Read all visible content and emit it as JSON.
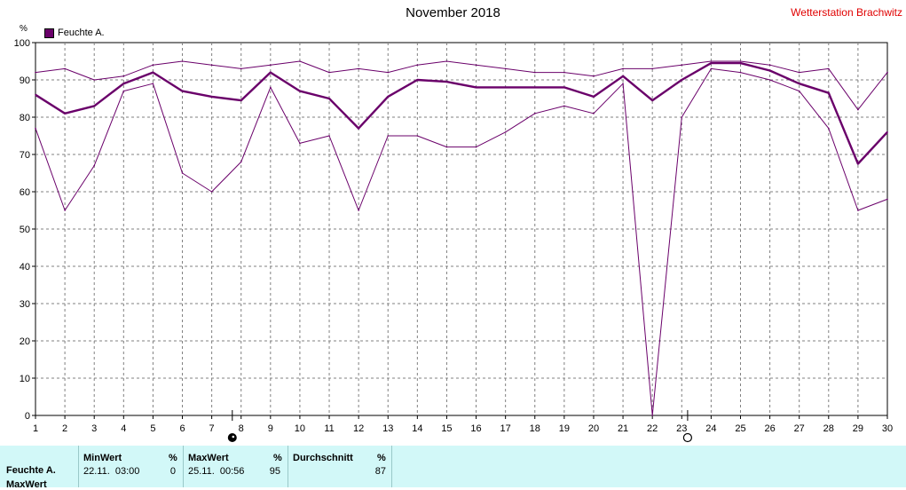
{
  "header": {
    "title": "November 2018",
    "station": "Wetterstation Brachwitz",
    "unit": "%"
  },
  "legend": {
    "label": "Feuchte A.",
    "color": "#6a006a"
  },
  "chart_data": {
    "type": "line",
    "x": [
      1,
      2,
      3,
      4,
      5,
      6,
      7,
      8,
      9,
      10,
      11,
      12,
      13,
      14,
      15,
      16,
      17,
      18,
      19,
      20,
      21,
      22,
      23,
      24,
      25,
      26,
      27,
      28,
      29,
      30
    ],
    "xticks": [
      "1",
      "2",
      "3",
      "4",
      "5",
      "6",
      "7",
      "8",
      "9",
      "10",
      "11",
      "12",
      "13",
      "14",
      "15",
      "16",
      "17",
      "18",
      "19",
      "20",
      "21",
      "22",
      "23",
      "24",
      "25",
      "26",
      "27",
      "28",
      "29",
      "30"
    ],
    "ylim": [
      0,
      100
    ],
    "yticks": [
      "0",
      "10",
      "20",
      "30",
      "40",
      "50",
      "60",
      "70",
      "80",
      "90",
      "100"
    ],
    "grid": true,
    "series": [
      {
        "role": "max",
        "color": "#6a006a",
        "points": [
          [
            1,
            92
          ],
          [
            2,
            93
          ],
          [
            3,
            90
          ],
          [
            4,
            91
          ],
          [
            5,
            94
          ],
          [
            6,
            95
          ],
          [
            7,
            94
          ],
          [
            8,
            93
          ],
          [
            9,
            94
          ],
          [
            10,
            95
          ],
          [
            11,
            92
          ],
          [
            12,
            93
          ],
          [
            13,
            92
          ],
          [
            14,
            94
          ],
          [
            15,
            95
          ],
          [
            16,
            94
          ],
          [
            17,
            93
          ],
          [
            18,
            92
          ],
          [
            19,
            92
          ],
          [
            20,
            91
          ],
          [
            21,
            93
          ],
          [
            22,
            93
          ],
          [
            23,
            94
          ],
          [
            24,
            95
          ],
          [
            25,
            95
          ],
          [
            26,
            94
          ],
          [
            27,
            92
          ],
          [
            28,
            93
          ],
          [
            29,
            82
          ],
          [
            30,
            92
          ]
        ]
      },
      {
        "role": "avg",
        "color": "#6a006a",
        "points": [
          [
            1,
            86
          ],
          [
            2,
            81
          ],
          [
            3,
            83
          ],
          [
            4,
            89
          ],
          [
            5,
            92
          ],
          [
            6,
            87
          ],
          [
            7,
            85.5
          ],
          [
            8,
            84.5
          ],
          [
            9,
            92
          ],
          [
            10,
            87
          ],
          [
            11,
            85
          ],
          [
            12,
            77
          ],
          [
            13,
            85.5
          ],
          [
            14,
            90
          ],
          [
            15,
            89.5
          ],
          [
            16,
            88
          ],
          [
            17,
            88
          ],
          [
            18,
            88
          ],
          [
            19,
            88
          ],
          [
            20,
            85.5
          ],
          [
            21,
            91
          ],
          [
            22,
            84.5
          ],
          [
            23,
            90
          ],
          [
            24,
            94.5
          ],
          [
            25,
            94.5
          ],
          [
            26,
            92.5
          ],
          [
            27,
            89
          ],
          [
            28,
            86.5
          ],
          [
            29,
            67.5
          ],
          [
            30,
            76
          ]
        ]
      },
      {
        "role": "min",
        "color": "#6a006a",
        "points": [
          [
            1,
            77
          ],
          [
            2,
            55
          ],
          [
            3,
            67
          ],
          [
            4,
            87
          ],
          [
            5,
            89
          ],
          [
            6,
            65
          ],
          [
            7,
            60
          ],
          [
            8,
            68
          ],
          [
            9,
            88
          ],
          [
            10,
            73
          ],
          [
            11,
            75
          ],
          [
            12,
            55
          ],
          [
            13,
            75
          ],
          [
            14,
            75
          ],
          [
            15,
            72
          ],
          [
            16,
            72
          ],
          [
            17,
            76
          ],
          [
            18,
            81
          ],
          [
            19,
            83
          ],
          [
            20,
            81
          ],
          [
            21,
            89
          ],
          [
            22,
            0
          ],
          [
            23,
            80
          ],
          [
            24,
            93
          ],
          [
            25,
            92
          ],
          [
            26,
            90
          ],
          [
            27,
            87
          ],
          [
            28,
            77
          ],
          [
            29,
            55
          ],
          [
            30,
            58
          ]
        ]
      }
    ],
    "moon_markers": [
      {
        "x": 7.7,
        "phase": "full-moon"
      },
      {
        "x": 23.2,
        "phase": "new-moon"
      }
    ]
  },
  "stats": {
    "row_label": "Feuchte A.",
    "row_label_2": "MaxWert",
    "min": {
      "header": "MinWert",
      "unit": "%",
      "time": "22.11.  03:00",
      "value": "0"
    },
    "max": {
      "header": "MaxWert",
      "unit": "%",
      "time": "25.11.  00:56",
      "value": "95"
    },
    "avg": {
      "header": "Durchschnitt",
      "unit": "%",
      "value": "87"
    }
  }
}
